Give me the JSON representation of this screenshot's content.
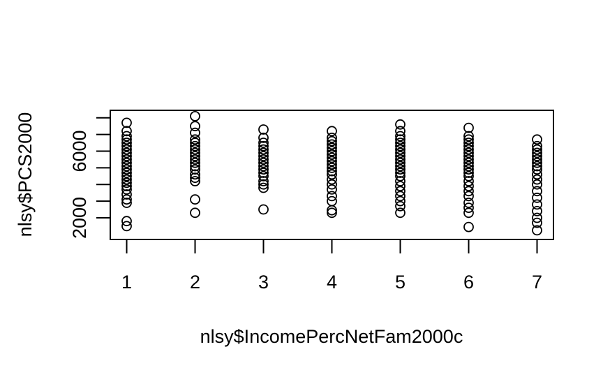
{
  "chart_data": {
    "type": "scatter",
    "title": "",
    "xlabel": "nlsy$IncomePercNetFam2000c",
    "ylabel": "nlsy$PCS2000",
    "xlim": [
      0.76,
      7.24
    ],
    "ylim": [
      700,
      8450
    ],
    "x_ticks": [
      1,
      2,
      3,
      4,
      5,
      6,
      7
    ],
    "y_ticks": [
      2000,
      4000,
      6000,
      8000
    ],
    "y_tick_labels": [
      "2000",
      "",
      "6000",
      ""
    ],
    "y_minor_ticks": [
      3000,
      5000,
      7000
    ],
    "grid": false,
    "legend": "none",
    "point_style": "open-circle",
    "point_color": "#000000",
    "series": [
      {
        "name": "",
        "points": [
          [
            1,
            1500
          ],
          [
            1,
            1800
          ],
          [
            1,
            2900
          ],
          [
            1,
            3100
          ],
          [
            1,
            3400
          ],
          [
            1,
            3700
          ],
          [
            1,
            3900
          ],
          [
            1,
            4100
          ],
          [
            1,
            4300
          ],
          [
            1,
            4500
          ],
          [
            1,
            4700
          ],
          [
            1,
            4900
          ],
          [
            1,
            5100
          ],
          [
            1,
            5300
          ],
          [
            1,
            5500
          ],
          [
            1,
            5700
          ],
          [
            1,
            5900
          ],
          [
            1,
            6100
          ],
          [
            1,
            6300
          ],
          [
            1,
            6500
          ],
          [
            1,
            6700
          ],
          [
            1,
            6900
          ],
          [
            1,
            7200
          ],
          [
            1,
            7700
          ],
          [
            2,
            2300
          ],
          [
            2,
            3100
          ],
          [
            2,
            4200
          ],
          [
            2,
            4400
          ],
          [
            2,
            4600
          ],
          [
            2,
            4900
          ],
          [
            2,
            5100
          ],
          [
            2,
            5300
          ],
          [
            2,
            5500
          ],
          [
            2,
            5700
          ],
          [
            2,
            5900
          ],
          [
            2,
            6100
          ],
          [
            2,
            6300
          ],
          [
            2,
            6500
          ],
          [
            2,
            6700
          ],
          [
            2,
            7100
          ],
          [
            2,
            7500
          ],
          [
            2,
            8100
          ],
          [
            3,
            2500
          ],
          [
            3,
            3800
          ],
          [
            3,
            4000
          ],
          [
            3,
            4200
          ],
          [
            3,
            4500
          ],
          [
            3,
            4700
          ],
          [
            3,
            4900
          ],
          [
            3,
            5100
          ],
          [
            3,
            5300
          ],
          [
            3,
            5500
          ],
          [
            3,
            5700
          ],
          [
            3,
            5900
          ],
          [
            3,
            6100
          ],
          [
            3,
            6300
          ],
          [
            3,
            6500
          ],
          [
            3,
            6800
          ],
          [
            3,
            7300
          ],
          [
            4,
            2300
          ],
          [
            4,
            2450
          ],
          [
            4,
            3000
          ],
          [
            4,
            3300
          ],
          [
            4,
            3700
          ],
          [
            4,
            4000
          ],
          [
            4,
            4300
          ],
          [
            4,
            4600
          ],
          [
            4,
            4800
          ],
          [
            4,
            5000
          ],
          [
            4,
            5200
          ],
          [
            4,
            5400
          ],
          [
            4,
            5600
          ],
          [
            4,
            5800
          ],
          [
            4,
            6000
          ],
          [
            4,
            6200
          ],
          [
            4,
            6400
          ],
          [
            4,
            6600
          ],
          [
            4,
            6800
          ],
          [
            4,
            7200
          ],
          [
            5,
            2300
          ],
          [
            5,
            2700
          ],
          [
            5,
            3000
          ],
          [
            5,
            3300
          ],
          [
            5,
            3600
          ],
          [
            5,
            3900
          ],
          [
            5,
            4200
          ],
          [
            5,
            4500
          ],
          [
            5,
            4700
          ],
          [
            5,
            4900
          ],
          [
            5,
            5100
          ],
          [
            5,
            5300
          ],
          [
            5,
            5500
          ],
          [
            5,
            5700
          ],
          [
            5,
            5900
          ],
          [
            5,
            6100
          ],
          [
            5,
            6300
          ],
          [
            5,
            6500
          ],
          [
            5,
            6700
          ],
          [
            5,
            6900
          ],
          [
            5,
            7200
          ],
          [
            5,
            7600
          ],
          [
            6,
            1450
          ],
          [
            6,
            2300
          ],
          [
            6,
            2600
          ],
          [
            6,
            2900
          ],
          [
            6,
            3300
          ],
          [
            6,
            3600
          ],
          [
            6,
            3900
          ],
          [
            6,
            4200
          ],
          [
            6,
            4500
          ],
          [
            6,
            4700
          ],
          [
            6,
            4900
          ],
          [
            6,
            5100
          ],
          [
            6,
            5300
          ],
          [
            6,
            5500
          ],
          [
            6,
            5700
          ],
          [
            6,
            5900
          ],
          [
            6,
            6100
          ],
          [
            6,
            6300
          ],
          [
            6,
            6500
          ],
          [
            6,
            6700
          ],
          [
            6,
            6900
          ],
          [
            6,
            7400
          ],
          [
            7,
            1250
          ],
          [
            7,
            1700
          ],
          [
            7,
            2000
          ],
          [
            7,
            2400
          ],
          [
            7,
            2800
          ],
          [
            7,
            3200
          ],
          [
            7,
            3600
          ],
          [
            7,
            4000
          ],
          [
            7,
            4300
          ],
          [
            7,
            4600
          ],
          [
            7,
            4900
          ],
          [
            7,
            5100
          ],
          [
            7,
            5300
          ],
          [
            7,
            5500
          ],
          [
            7,
            5700
          ],
          [
            7,
            5900
          ],
          [
            7,
            6100
          ],
          [
            7,
            6300
          ],
          [
            7,
            6700
          ]
        ]
      }
    ]
  }
}
